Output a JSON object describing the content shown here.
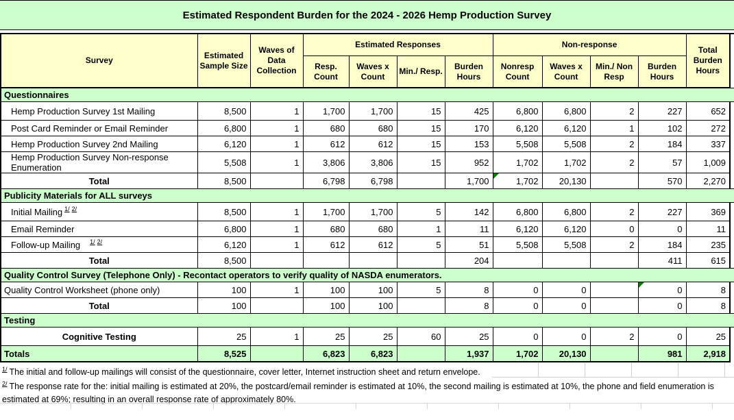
{
  "title": "Estimated Respondent Burden for the 2024 - 2026 Hemp Production Survey",
  "colors": {
    "band_green": "#CCFFCC",
    "header_yellow": "#FFFFCC",
    "flag_triangle_green": "#0B7A0B",
    "border_black": "#000000",
    "gridline_gray": "#CFCFCF"
  },
  "header": {
    "survey": "Survey",
    "sample_size": "Estimated Sample Size",
    "waves": "Waves of Data Collection",
    "est_responses": "Estimated Responses",
    "non_response": "Non-response",
    "total_burden": "Total Burden Hours",
    "sub": [
      "Resp. Count",
      "Waves x Count",
      "Min./ Resp.",
      "Burden Hours",
      "Nonresp Count",
      "Waves x Count",
      "Min./ Non Resp",
      "Burden Hours"
    ]
  },
  "table": {
    "rows": [
      {
        "type": "section",
        "label": "Questionnaires"
      },
      {
        "type": "item",
        "label": "Hemp Production Survey 1st Mailing",
        "tall": true,
        "values": [
          "8,500",
          "1",
          "1,700",
          "1,700",
          "15",
          "425",
          "6,800",
          "6,800",
          "2",
          "227",
          "652"
        ]
      },
      {
        "type": "item",
        "label": "Post Card Reminder or Email Reminder",
        "values": [
          "6,800",
          "1",
          "680",
          "680",
          "15",
          "170",
          "6,120",
          "6,120",
          "1",
          "102",
          "272"
        ]
      },
      {
        "type": "item",
        "label": "Hemp Production Survey 2nd Mailing",
        "values": [
          "6,120",
          "1",
          "612",
          "612",
          "15",
          "153",
          "5,508",
          "5,508",
          "2",
          "184",
          "337"
        ]
      },
      {
        "type": "item",
        "label": "Hemp Production Survey Non-response Enumeration",
        "values": [
          "5,508",
          "1",
          "3,806",
          "3,806",
          "15",
          "952",
          "1,702",
          "1,702",
          "2",
          "57",
          "1,009"
        ]
      },
      {
        "type": "total",
        "label": "Total",
        "flags": [
          6
        ],
        "values": [
          "8,500",
          "",
          "6,798",
          "6,798",
          "",
          "1,700",
          "1,702",
          "20,130",
          "",
          "570",
          "2,270"
        ]
      },
      {
        "type": "section",
        "label": "Publicity Materials for ALL surveys"
      },
      {
        "type": "item",
        "label": "Initial Mailing",
        "sups": [
          "1/",
          "2/"
        ],
        "tall": true,
        "values": [
          "8,500",
          "1",
          "1,700",
          "1,700",
          "5",
          "142",
          "6,800",
          "6,800",
          "2",
          "227",
          "369"
        ]
      },
      {
        "type": "item",
        "label": "Email Reminder",
        "values": [
          "6,800",
          "1",
          "680",
          "680",
          "1",
          "11",
          "6,120",
          "6,120",
          "0",
          "0",
          "11"
        ]
      },
      {
        "type": "item",
        "label": "Follow-up Mailing",
        "sups": [
          "1/",
          "2/"
        ],
        "sup_gap": true,
        "values": [
          "6,120",
          "1",
          "612",
          "612",
          "5",
          "51",
          "5,508",
          "5,508",
          "2",
          "184",
          "235"
        ]
      },
      {
        "type": "total",
        "label": "Total",
        "values": [
          "8,500",
          "",
          "",
          "",
          "",
          "204",
          "",
          "",
          "",
          "411",
          "615"
        ]
      },
      {
        "type": "section",
        "label": "Quality Control Survey (Telephone Only) - Recontact operators to verify quality of NASDA enumerators."
      },
      {
        "type": "item",
        "label": "Quality Control Worksheet (phone only)",
        "flush": true,
        "flags": [
          9
        ],
        "values": [
          "100",
          "1",
          "100",
          "100",
          "5",
          "8",
          "0",
          "0",
          "",
          "0",
          "8"
        ]
      },
      {
        "type": "total",
        "label": "Total",
        "values": [
          "100",
          "",
          "100",
          "100",
          "",
          "8",
          "0",
          "0",
          "",
          "0",
          "8"
        ]
      },
      {
        "type": "section",
        "label": "Testing"
      },
      {
        "type": "item",
        "label": "Cognitive Testing",
        "center": true,
        "tall": true,
        "values": [
          "25",
          "1",
          "25",
          "25",
          "60",
          "25",
          "0",
          "0",
          "2",
          "0",
          "25"
        ]
      },
      {
        "type": "grand",
        "label": "Totals",
        "values": [
          "8,525",
          "",
          "6,823",
          "6,823",
          "",
          "1,937",
          "1,702",
          "20,130",
          "",
          "981",
          "2,918"
        ]
      }
    ]
  },
  "footnotes": [
    {
      "marker": "1/",
      "text": "The initial and follow-up mailings will consist of the questionnaire, cover letter, Internet instruction sheet and return envelope."
    },
    {
      "marker": "2/",
      "text": "The response rate for the: initial mailing is estimated at 20%, the postcard/email reminder is estimated at 10%, the second mailing is estimated at 10%, the phone and field enumeration is estimated at 69%; resulting in an overall response rate of approximately 80%."
    }
  ]
}
